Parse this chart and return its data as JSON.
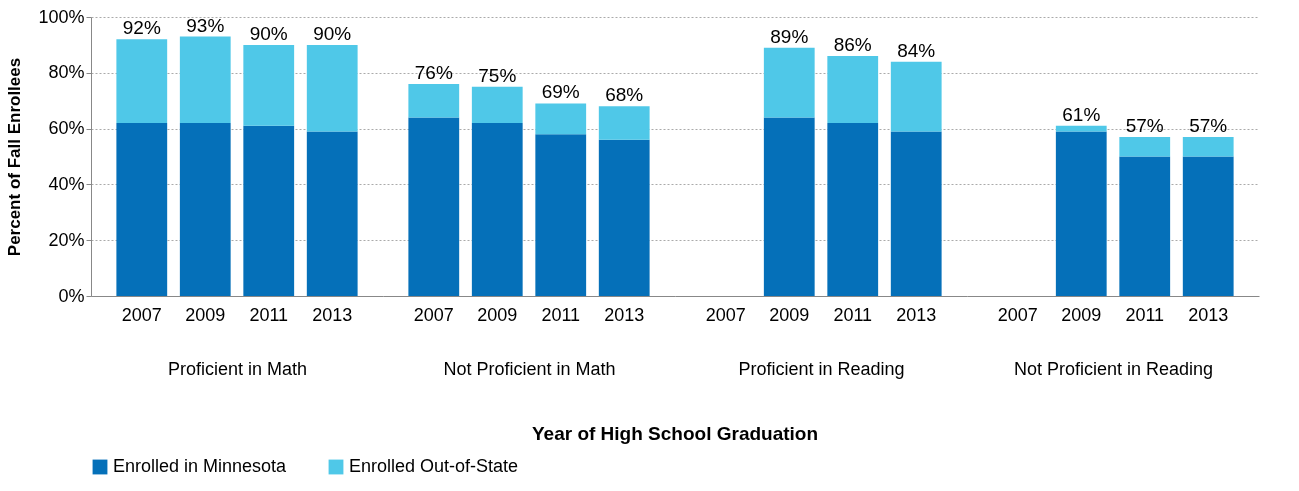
{
  "chart_data": [
    {
      "type": "bar",
      "stacked": true,
      "xlabel": "Proficient in Math",
      "ylabel": "Percent of Fall Enrollees",
      "categories": [
        "2007",
        "2009",
        "2011",
        "2013"
      ],
      "series": [
        {
          "name": "Enrolled in Minnesota",
          "color": "#0570b9",
          "values": [
            62,
            62,
            61,
            59
          ]
        },
        {
          "name": "Enrolled Out-of-State",
          "color": "#4fc8e8",
          "values": [
            30,
            31,
            29,
            31
          ]
        }
      ],
      "totals": [
        "92%",
        "93%",
        "90%",
        "90%"
      ],
      "annotations": [
        "Year of High School Graduation"
      ],
      "ylim": [
        0,
        100
      ],
      "yticks": [
        {
          "value": 0,
          "label": "0%"
        },
        {
          "value": 20,
          "label": "20%"
        },
        {
          "value": 40,
          "label": "40%"
        },
        {
          "value": 60,
          "label": "60%"
        },
        {
          "value": 80,
          "label": "80%"
        },
        {
          "value": 100,
          "label": "100%"
        }
      ],
      "grid": "y",
      "legend": "bottom"
    },
    {
      "type": "bar",
      "stacked": true,
      "xlabel": "Not Proficient in Math",
      "categories": [
        "2007",
        "2009",
        "2011",
        "2013"
      ],
      "series": [
        {
          "color": "#0570b9",
          "values": [
            64,
            62,
            58,
            56
          ]
        },
        {
          "color": "#4fc8e8",
          "values": [
            12,
            13,
            11,
            12
          ]
        }
      ],
      "totals": [
        "76%",
        "75%",
        "69%",
        "68%"
      ],
      "ylim": [
        0,
        100
      ],
      "tick_labels": "x",
      "grid": "y"
    },
    {
      "type": "bar",
      "stacked": true,
      "xlabel": "Proficient in Reading",
      "categories": [
        "2007",
        "2009",
        "2011",
        "2013"
      ],
      "series": [
        {
          "color": "#0570b9",
          "values": [
            null,
            64,
            62,
            59
          ]
        },
        {
          "color": "#4fc8e8",
          "values": [
            null,
            25,
            24,
            25
          ]
        }
      ],
      "totals": [
        null,
        "89%",
        "86%",
        "84%"
      ],
      "ylim": [
        0,
        100
      ],
      "tick_labels": "x",
      "grid": "y"
    },
    {
      "type": "bar",
      "stacked": true,
      "xlabel": "Not Proficient in Reading",
      "categories": [
        "2007",
        "2009",
        "2011",
        "2013"
      ],
      "series": [
        {
          "color": "#0570b9",
          "values": [
            null,
            59,
            50,
            50
          ]
        },
        {
          "color": "#4fc8e8",
          "values": [
            null,
            2,
            7,
            7
          ]
        }
      ],
      "totals": [
        null,
        "61%",
        "57%",
        "57%"
      ],
      "ylim": [
        0,
        100
      ],
      "tick_labels": "x",
      "grid": "y"
    }
  ]
}
